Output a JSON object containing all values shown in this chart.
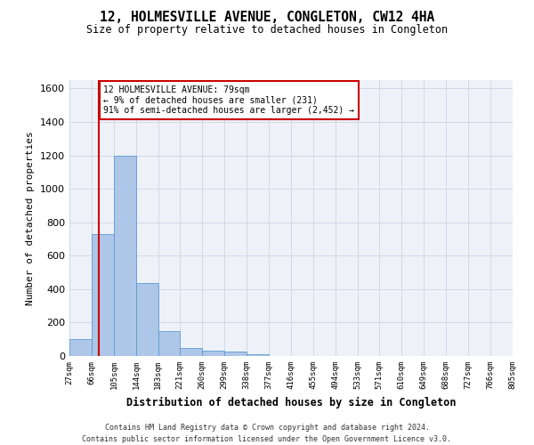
{
  "title": "12, HOLMESVILLE AVENUE, CONGLETON, CW12 4HA",
  "subtitle": "Size of property relative to detached houses in Congleton",
  "xlabel": "Distribution of detached houses by size in Congleton",
  "ylabel": "Number of detached properties",
  "annotation_line1": "12 HOLMESVILLE AVENUE: 79sqm",
  "annotation_line2": "← 9% of detached houses are smaller (231)",
  "annotation_line3": "91% of semi-detached houses are larger (2,452) →",
  "footer_line1": "Contains HM Land Registry data © Crown copyright and database right 2024.",
  "footer_line2": "Contains public sector information licensed under the Open Government Licence v3.0.",
  "bar_edges": [
    27,
    66,
    105,
    144,
    183,
    221,
    260,
    299,
    338,
    377,
    416,
    455,
    494,
    533,
    571,
    610,
    649,
    688,
    727,
    766,
    805
  ],
  "bar_heights": [
    100,
    730,
    1200,
    435,
    150,
    50,
    30,
    25,
    10,
    0,
    0,
    0,
    0,
    0,
    0,
    0,
    0,
    0,
    0,
    0
  ],
  "bar_color": "#aec6e8",
  "bar_edge_color": "#5b9bd5",
  "property_line_x": 79,
  "property_line_color": "#cc0000",
  "annotation_box_color": "#cc0000",
  "ylim": [
    0,
    1650
  ],
  "xlim": [
    27,
    805
  ],
  "yticks": [
    0,
    200,
    400,
    600,
    800,
    1000,
    1200,
    1400,
    1600
  ],
  "grid_color": "#d0d8e8",
  "bg_color": "#eef2f8"
}
